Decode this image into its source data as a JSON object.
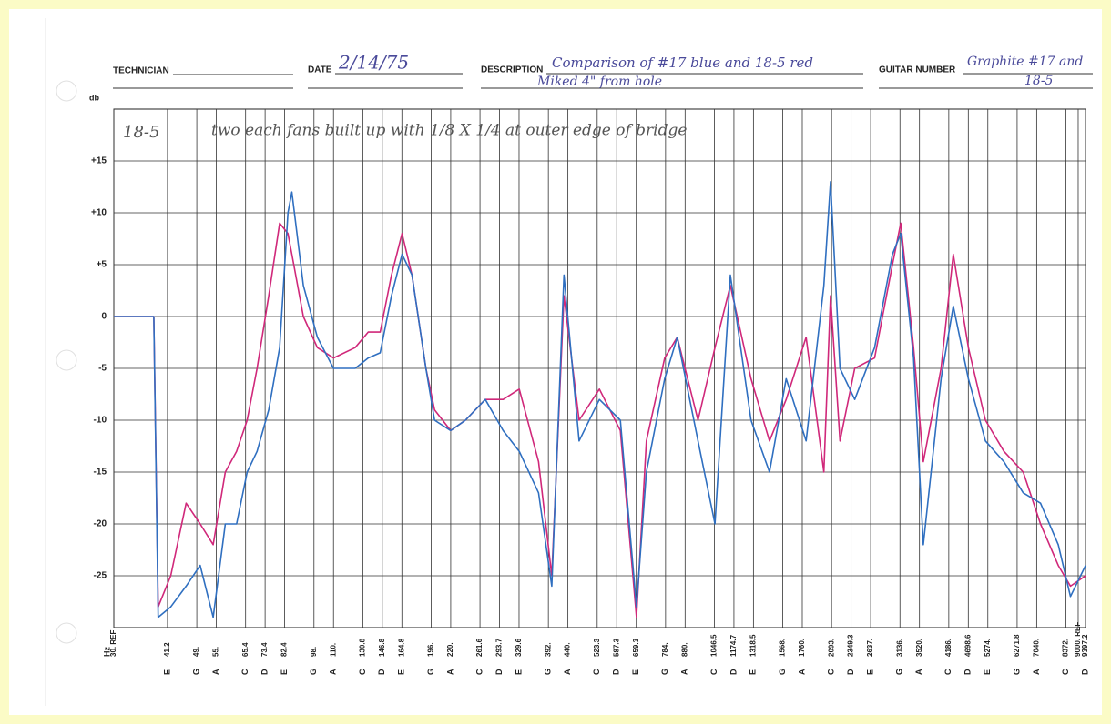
{
  "form": {
    "technician_label": "TECHNICIAN",
    "date_label": "DATE",
    "date": "2/14/75",
    "description_label": "DESCRIPTION",
    "description_line1": "Comparison of #17 blue and 18-5 red",
    "description_line2": "Miked 4\" from hole",
    "guitar_label": "GUITAR NUMBER",
    "guitar_line1": "Graphite #17 and",
    "guitar_line2": "18-5"
  },
  "chart_data": {
    "type": "line",
    "ylabel": "db",
    "xlabel": "Hz",
    "annotation_id": "18-5",
    "annotation": "two each fans built up with 1/8 X 1/4 at outer edge of bridge",
    "log_x": true,
    "grid": true,
    "xlim": [
      30,
      9397.2
    ],
    "ylim": [
      -30,
      20
    ],
    "yticks": [
      {
        "value": 15,
        "label": "+15"
      },
      {
        "value": 10,
        "label": "+10"
      },
      {
        "value": 5,
        "label": "+5"
      },
      0,
      -5,
      -10,
      -15,
      -20,
      -25
    ],
    "xticks": [
      {
        "value": 30,
        "label": "30. REF"
      },
      41.2,
      {
        "value": 49,
        "label": "49."
      },
      {
        "value": 55,
        "label": "55."
      },
      65.4,
      73.4,
      82.4,
      {
        "value": 98,
        "label": "98."
      },
      {
        "value": 110,
        "label": "110."
      },
      130.8,
      146.8,
      164.8,
      {
        "value": 196,
        "label": "196."
      },
      {
        "value": 220,
        "label": "220."
      },
      261.6,
      293.7,
      329.6,
      {
        "value": 392,
        "label": "392."
      },
      {
        "value": 440,
        "label": "440."
      },
      523.3,
      587.3,
      659.3,
      {
        "value": 784,
        "label": "784."
      },
      {
        "value": 880,
        "label": "880."
      },
      1046.5,
      1174.7,
      1318.5,
      {
        "value": 1568,
        "label": "1568."
      },
      {
        "value": 1760,
        "label": "1760."
      },
      {
        "value": 2093,
        "label": "2093."
      },
      2349.3,
      {
        "value": 2637,
        "label": "2637."
      },
      {
        "value": 3136,
        "label": "3136."
      },
      {
        "value": 3520,
        "label": "3520."
      },
      {
        "value": 4186,
        "label": "4186."
      },
      4698.6,
      {
        "value": 5274,
        "label": "5274."
      },
      6271.8,
      {
        "value": 7040,
        "label": "7040."
      },
      {
        "value": 8372,
        "label": "8372."
      },
      {
        "value": 9000,
        "label": "9000. REF"
      },
      9397.2
    ],
    "notes": [
      null,
      "E",
      "G",
      "A",
      "C",
      "D",
      "E",
      "G",
      "A",
      "C",
      "D",
      "E",
      "G",
      "A",
      "C",
      "D",
      "E",
      "G",
      "A",
      "C",
      "D",
      "E",
      "G",
      "A",
      "C",
      "D",
      "E",
      "G",
      "A",
      "C",
      "D",
      "E",
      "G",
      "A",
      "C",
      "D",
      "E",
      "G",
      "A",
      "C",
      null,
      "D"
    ],
    "x": [
      30,
      38,
      39,
      42,
      46,
      50,
      54,
      58,
      62,
      66,
      70,
      75,
      80,
      84,
      86,
      92,
      100,
      110,
      125,
      135,
      145,
      155,
      165,
      175,
      190,
      200,
      220,
      240,
      270,
      300,
      330,
      370,
      400,
      430,
      470,
      530,
      600,
      660,
      700,
      780,
      840,
      950,
      1050,
      1150,
      1300,
      1450,
      1600,
      1800,
      2000,
      2080,
      2200,
      2400,
      2700,
      3000,
      3150,
      3400,
      3600,
      4000,
      4300,
      4700,
      5200,
      5800,
      6500,
      7200,
      8000,
      8600,
      9400
    ],
    "series": [
      {
        "name": "18-5",
        "color": "#d0287a",
        "values": [
          0,
          0,
          -28,
          -25,
          -18,
          -20,
          -22,
          -15,
          -13,
          -10,
          -5,
          2,
          9,
          8,
          6,
          0,
          -3,
          -4,
          -3,
          -1.5,
          -1.5,
          4,
          8,
          4,
          -5,
          -9,
          -11,
          -10,
          -8,
          -8,
          -7,
          -14,
          -25,
          2,
          -10,
          -7,
          -11,
          -29,
          -12,
          -4,
          -2,
          -10,
          -3,
          3,
          -6,
          -12,
          -8,
          -2,
          -15,
          2,
          -12,
          -5,
          -4,
          5,
          9,
          -3,
          -14,
          -5,
          6,
          -3,
          -10,
          -13,
          -15,
          -20,
          -24,
          -26,
          -25
        ]
      },
      {
        "name": "#17",
        "color": "#2f6fc0",
        "values": [
          0,
          0,
          -29,
          -28,
          -26,
          -24,
          -29,
          -20,
          -20,
          -15,
          -13,
          -9,
          -3,
          10,
          12,
          3,
          -2,
          -5,
          -5,
          -4,
          -3.5,
          2,
          6,
          4,
          -5,
          -10,
          -11,
          -10,
          -8,
          -11,
          -13,
          -17,
          -26,
          4,
          -12,
          -8,
          -10,
          -28,
          -15,
          -6,
          -2,
          -12,
          -20,
          4,
          -10,
          -15,
          -6,
          -12,
          3,
          13,
          -5,
          -8,
          -3,
          6,
          8,
          -4,
          -22,
          -6,
          1,
          -6,
          -12,
          -14,
          -17,
          -18,
          -22,
          -27,
          -24
        ]
      }
    ]
  }
}
